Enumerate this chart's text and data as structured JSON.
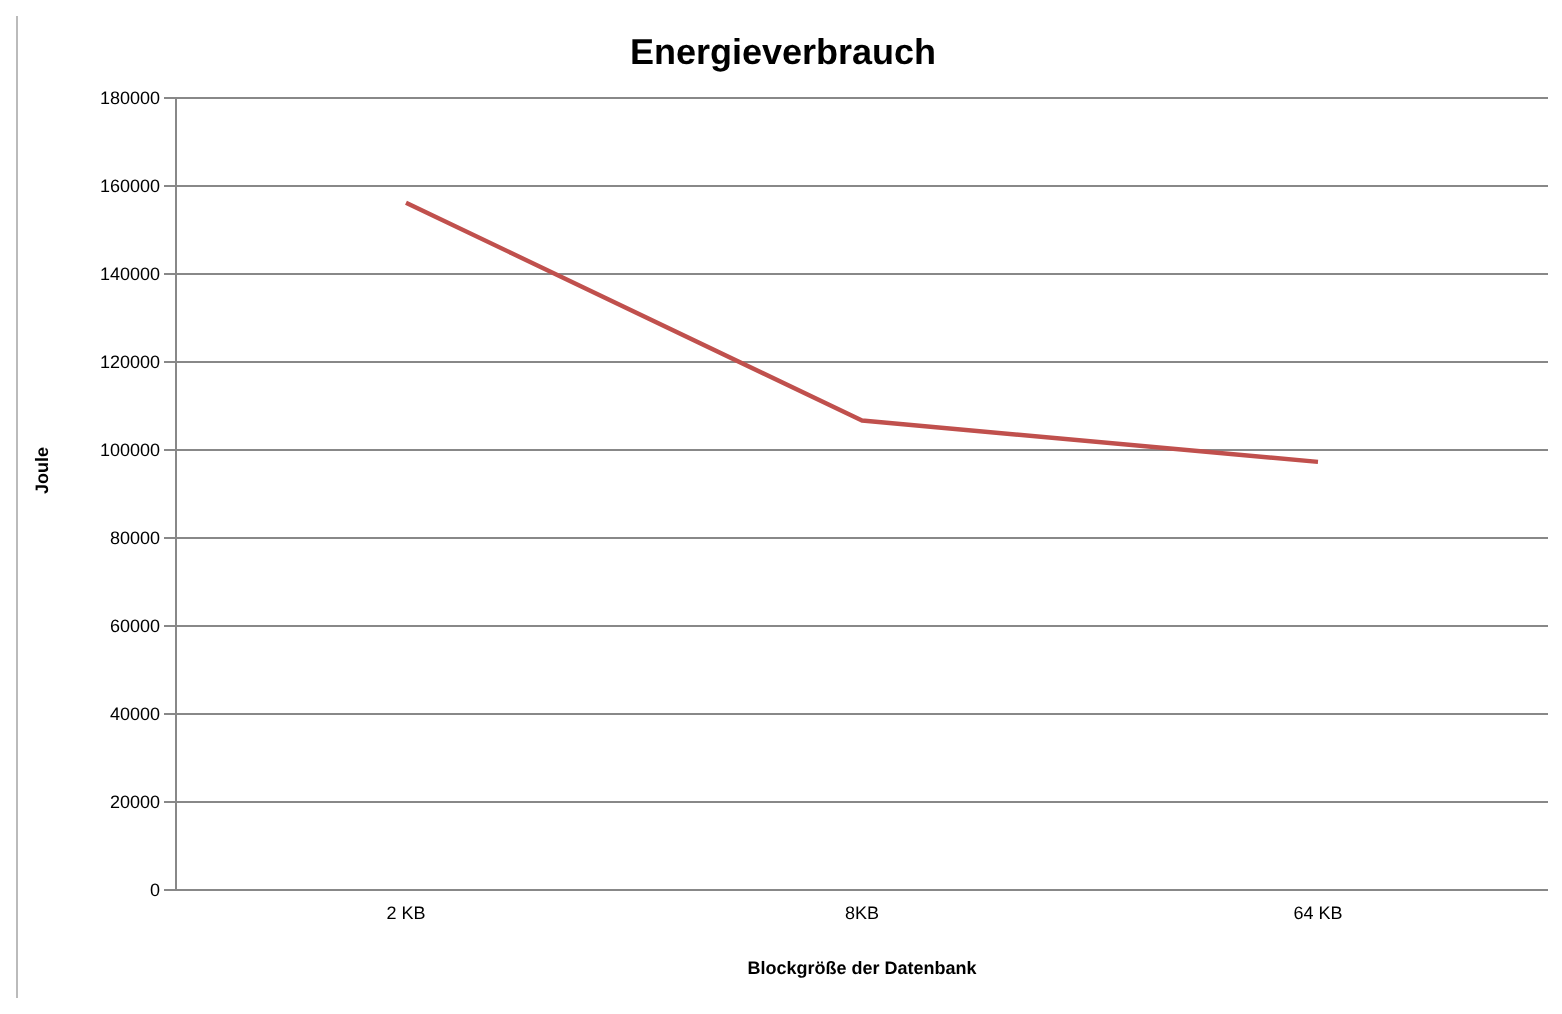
{
  "chart_data": {
    "type": "line",
    "title": "Energieverbrauch",
    "xlabel": "Blockgröße der Datenbank",
    "ylabel": "Joule",
    "categories": [
      "2 KB",
      "8KB",
      "64 KB"
    ],
    "series": [
      {
        "color": "#c0504d",
        "values": [
          156200,
          106700,
          97300
        ]
      }
    ],
    "ylim": [
      0,
      180000
    ],
    "yticks": [
      0,
      20000,
      40000,
      60000,
      80000,
      100000,
      120000,
      140000,
      160000,
      180000
    ],
    "grid": "y",
    "legend": false,
    "marker": "none"
  }
}
